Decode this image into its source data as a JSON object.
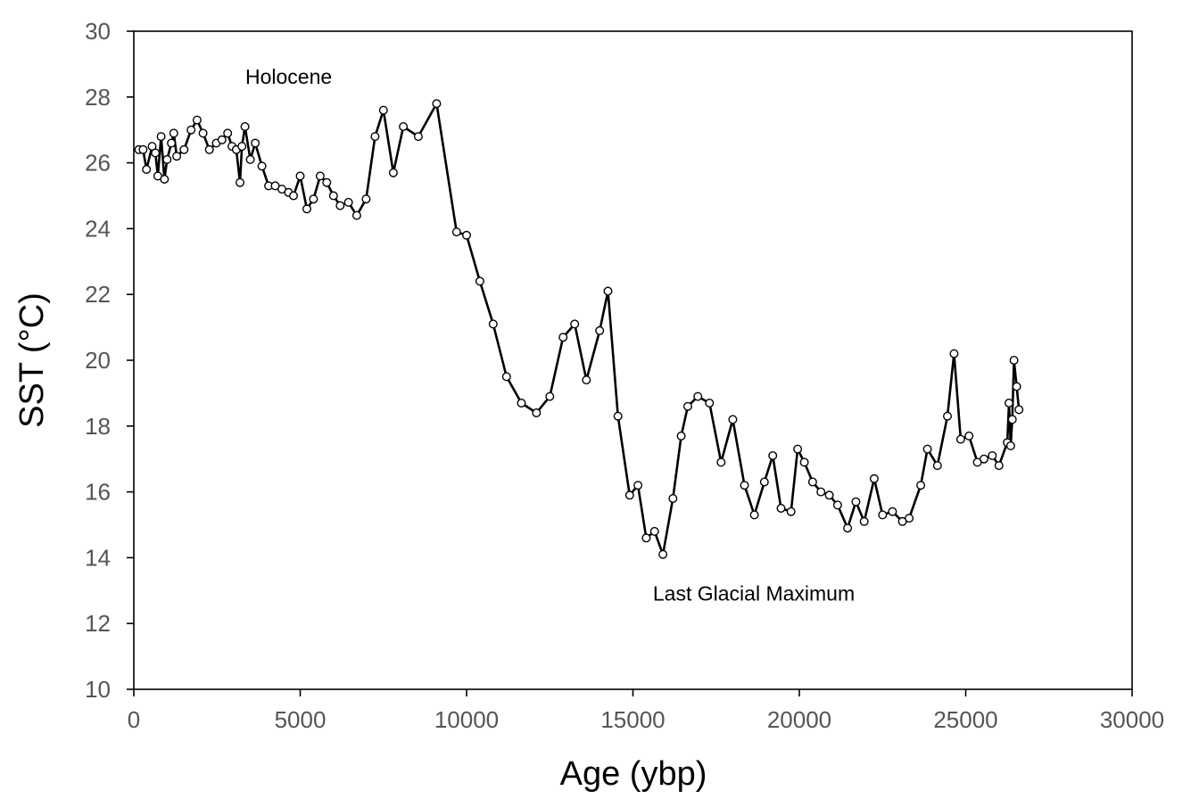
{
  "chart_data": {
    "type": "line",
    "title": "",
    "xlabel": "Age (ybp)",
    "ylabel": "SST (°C)",
    "xlim": [
      0,
      30000
    ],
    "ylim": [
      10,
      30
    ],
    "xticks": [
      0,
      5000,
      10000,
      15000,
      20000,
      25000,
      30000
    ],
    "yticks": [
      10,
      12,
      14,
      16,
      18,
      20,
      22,
      24,
      26,
      28,
      30
    ],
    "xtick_labels": [
      "0",
      "5000",
      "10000",
      "15000",
      "20000",
      "25000",
      "30000"
    ],
    "ytick_labels": [
      "10",
      "12",
      "14",
      "16",
      "18",
      "20",
      "22",
      "24",
      "26",
      "28",
      "30"
    ],
    "grid": false,
    "legend": false,
    "line_color": "#000000",
    "marker": "open-circle",
    "annotations": [
      {
        "text": "Holocene",
        "x": 3350,
        "y": 28.4
      },
      {
        "text": "Last Glacial Maximum",
        "x": 15600,
        "y": 12.7
      }
    ],
    "series": [
      {
        "name": "SST",
        "x": [
          150,
          280,
          380,
          550,
          650,
          720,
          820,
          920,
          1000,
          1130,
          1200,
          1290,
          1510,
          1720,
          1900,
          2080,
          2270,
          2480,
          2650,
          2820,
          2950,
          3080,
          3190,
          3250,
          3340,
          3500,
          3650,
          3850,
          4050,
          4250,
          4450,
          4650,
          4800,
          5000,
          5200,
          5400,
          5600,
          5800,
          6000,
          6200,
          6450,
          6700,
          6980,
          7250,
          7500,
          7800,
          8100,
          8550,
          9100,
          9700,
          10000,
          10400,
          10800,
          11200,
          11650,
          12100,
          12500,
          12900,
          13250,
          13600,
          14000,
          14250,
          14550,
          14900,
          15150,
          15400,
          15650,
          15900,
          16200,
          16450,
          16650,
          16950,
          17300,
          17650,
          18000,
          18350,
          18650,
          18950,
          19200,
          19450,
          19750,
          19950,
          20150,
          20400,
          20650,
          20900,
          21150,
          21450,
          21700,
          21950,
          22250,
          22500,
          22800,
          23100,
          23300,
          23650,
          23850,
          24150,
          24450,
          24650,
          24850,
          25100,
          25350,
          25550,
          25800,
          26000,
          26250,
          26300,
          26350,
          26400,
          26450,
          26530,
          26600
        ],
        "y": [
          26.4,
          26.4,
          25.8,
          26.5,
          26.3,
          25.6,
          26.8,
          25.5,
          26.1,
          26.6,
          26.9,
          26.2,
          26.4,
          27.0,
          27.3,
          26.9,
          26.4,
          26.6,
          26.7,
          26.9,
          26.5,
          26.4,
          25.4,
          26.5,
          27.1,
          26.1,
          26.6,
          25.9,
          25.3,
          25.3,
          25.2,
          25.1,
          25.0,
          25.6,
          24.6,
          24.9,
          25.6,
          25.4,
          25.0,
          24.7,
          24.8,
          24.4,
          24.9,
          26.8,
          27.6,
          25.7,
          27.1,
          26.8,
          27.8,
          23.9,
          23.8,
          22.4,
          21.1,
          19.5,
          18.7,
          18.4,
          18.9,
          20.7,
          21.1,
          19.4,
          20.9,
          22.1,
          18.3,
          15.9,
          16.2,
          14.6,
          14.8,
          14.1,
          15.8,
          17.7,
          18.6,
          18.9,
          18.7,
          16.9,
          18.2,
          16.2,
          15.3,
          16.3,
          17.1,
          15.5,
          15.4,
          17.3,
          16.9,
          16.3,
          16.0,
          15.9,
          15.6,
          14.9,
          15.7,
          15.1,
          16.4,
          15.3,
          15.4,
          15.1,
          15.2,
          16.2,
          17.3,
          16.8,
          18.3,
          20.2,
          17.6,
          17.7,
          16.9,
          17.0,
          17.1,
          16.8,
          17.5,
          18.7,
          17.4,
          18.2,
          20.0,
          19.2,
          18.5
        ]
      }
    ]
  }
}
